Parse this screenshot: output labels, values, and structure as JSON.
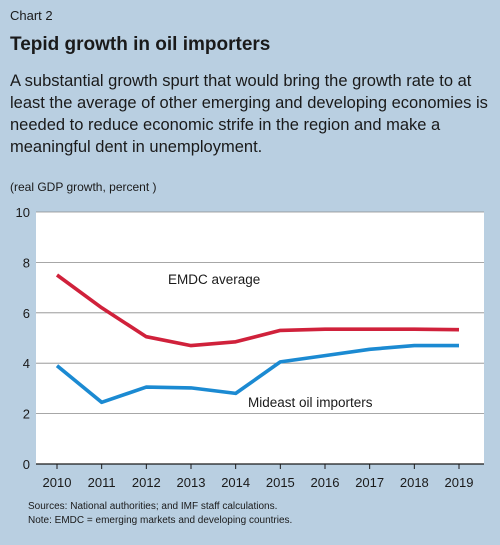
{
  "header": {
    "label": "Chart 2",
    "title": "Tepid growth in oil importers",
    "subtitle": "A substantial growth spurt that would bring the growth rate to at least the average of other emerging and developing economies is needed to reduce economic strife in the region and make a meaningful dent in unemployment."
  },
  "chart_data": {
    "type": "line",
    "title": "Tepid growth in oil importers",
    "units_note": "(real GDP growth, percent )",
    "xlabel": "",
    "ylabel": "",
    "x": [
      "2010",
      "2011",
      "2012",
      "2013",
      "2014",
      "2015",
      "2016",
      "2017",
      "2018",
      "2019"
    ],
    "ylim": [
      0,
      10
    ],
    "yticks": [
      "0",
      "2",
      "4",
      "6",
      "8",
      "10"
    ],
    "grid": "horizontal",
    "series": [
      {
        "name": "EMDC average",
        "color": "#d0213b",
        "values": [
          7.5,
          6.2,
          5.05,
          4.7,
          4.85,
          5.3,
          5.35,
          5.35,
          5.35,
          5.33
        ]
      },
      {
        "name": "Mideast oil importers",
        "color": "#1b8ad2",
        "values": [
          3.9,
          2.45,
          3.05,
          3.02,
          2.8,
          4.05,
          4.3,
          4.55,
          4.7,
          4.7
        ]
      }
    ]
  },
  "footer": {
    "source": "Sources: National authorities; and IMF staff calculations.",
    "note": "Note: EMDC = emerging markets and developing countries."
  }
}
